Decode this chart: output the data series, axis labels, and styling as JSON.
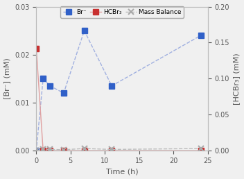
{
  "title": "",
  "xlabel": "Time (h)",
  "ylabel_left": "[Br⁻] (mM)",
  "ylabel_right": "[HCBr₃] (mM)",
  "Br_x": [
    0,
    1,
    2,
    4,
    7,
    11,
    24
  ],
  "Br_y": [
    0.0,
    0.015,
    0.0135,
    0.012,
    0.025,
    0.0135,
    0.024
  ],
  "HCBr3_x": [
    0,
    1,
    2,
    4,
    7,
    11,
    24
  ],
  "HCBr3_y": [
    0.0213,
    0.0,
    0.0,
    0.0,
    0.0,
    0.0,
    0.0
  ],
  "MB_x": [
    0,
    1,
    2,
    4,
    7,
    11,
    24
  ],
  "MB_y": [
    0.0,
    0.0022,
    0.0017,
    0.0013,
    0.003,
    0.0017,
    0.003
  ],
  "Br_color": "#3060c8",
  "HCBr3_color": "#c83030",
  "MB_color": "#aaaaaa",
  "Br_line_color": "#a0b0e0",
  "HCBr3_line_color": "#e0a0a0",
  "MB_line_color": "#bbbbbb",
  "ylim_left": [
    0,
    0.03
  ],
  "ylim_right": [
    0,
    0.2
  ],
  "xlim": [
    0,
    25
  ],
  "xticks": [
    0,
    5,
    10,
    15,
    20,
    25
  ],
  "yticks_left": [
    0.0,
    0.01,
    0.02,
    0.03
  ],
  "yticks_right": [
    0.0,
    0.05,
    0.1,
    0.15,
    0.2
  ],
  "legend_labels": [
    "Br⁻",
    "HCBr₃",
    "Mass Balance"
  ],
  "bg_color": "#f0f0f0"
}
